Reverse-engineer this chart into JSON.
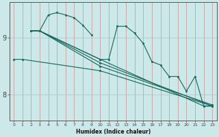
{
  "xlabel": "Humidex (Indice chaleur)",
  "ylabel": "",
  "bg_color": "#cce8e8",
  "line_color": "#1a6b60",
  "vgrid_color": "#c8a0a0",
  "hgrid_color": "#b0c8c8",
  "xmin": -0.5,
  "xmax": 23.5,
  "ymin": 7.55,
  "ymax": 9.62,
  "yticks": [
    8,
    9
  ],
  "xticks": [
    0,
    1,
    2,
    3,
    4,
    5,
    6,
    7,
    8,
    9,
    10,
    11,
    12,
    13,
    14,
    15,
    16,
    17,
    18,
    19,
    20,
    21,
    22,
    23
  ],
  "lines": [
    {
      "x": [
        2,
        3,
        4,
        5,
        6,
        7,
        8,
        9
      ],
      "y": [
        9.12,
        9.12,
        9.4,
        9.44,
        9.4,
        9.35,
        9.22,
        9.05
      ]
    },
    {
      "x": [
        2,
        3,
        10,
        11,
        12,
        13,
        14,
        15,
        16,
        17,
        18,
        19,
        20,
        21,
        22,
        23
      ],
      "y": [
        9.12,
        9.12,
        8.62,
        8.62,
        9.2,
        9.2,
        9.08,
        8.9,
        8.58,
        8.52,
        8.32,
        8.32,
        8.06,
        8.32,
        7.8,
        7.8
      ]
    },
    {
      "x": [
        2,
        3,
        10,
        22,
        23
      ],
      "y": [
        9.12,
        9.12,
        8.62,
        7.8,
        7.8
      ]
    },
    {
      "x": [
        2,
        3,
        10,
        23
      ],
      "y": [
        9.12,
        9.12,
        8.56,
        7.8
      ]
    },
    {
      "x": [
        2,
        3,
        10,
        23
      ],
      "y": [
        9.12,
        9.12,
        8.5,
        7.82
      ]
    },
    {
      "x": [
        0,
        1,
        10,
        23
      ],
      "y": [
        8.62,
        8.62,
        8.42,
        7.8
      ]
    }
  ]
}
